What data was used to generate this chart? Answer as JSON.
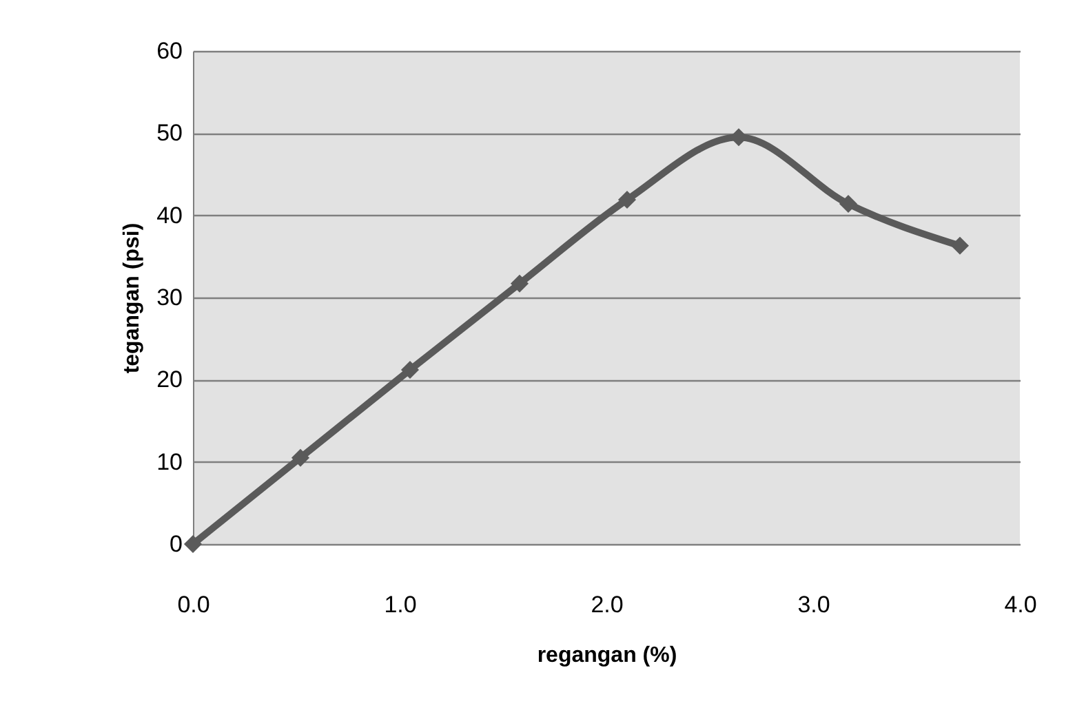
{
  "chart_data": {
    "type": "line",
    "xlabel": "regangan (%)",
    "ylabel": "tegangan (psi)",
    "x": [
      0,
      0.52,
      1.05,
      1.58,
      2.1,
      2.64,
      3.17,
      3.71
    ],
    "series": [
      {
        "color": "#5a5a5a",
        "values": [
          0,
          10.5,
          21.2,
          31.7,
          41.9,
          49.5,
          41.4,
          36.3
        ]
      }
    ],
    "xlim": [
      0,
      4
    ],
    "xticks": [
      {
        "value": 0,
        "label": "0.0"
      },
      {
        "value": 1,
        "label": "1.0"
      },
      {
        "value": 2,
        "label": "2.0"
      },
      {
        "value": 3,
        "label": "3.0"
      },
      {
        "value": 4,
        "label": "4.0"
      }
    ],
    "ylim": [
      0,
      60
    ],
    "yticks": [
      0,
      10,
      20,
      30,
      40,
      50,
      60
    ],
    "grid": "y",
    "marker": "diamond",
    "line_style": "solid"
  }
}
